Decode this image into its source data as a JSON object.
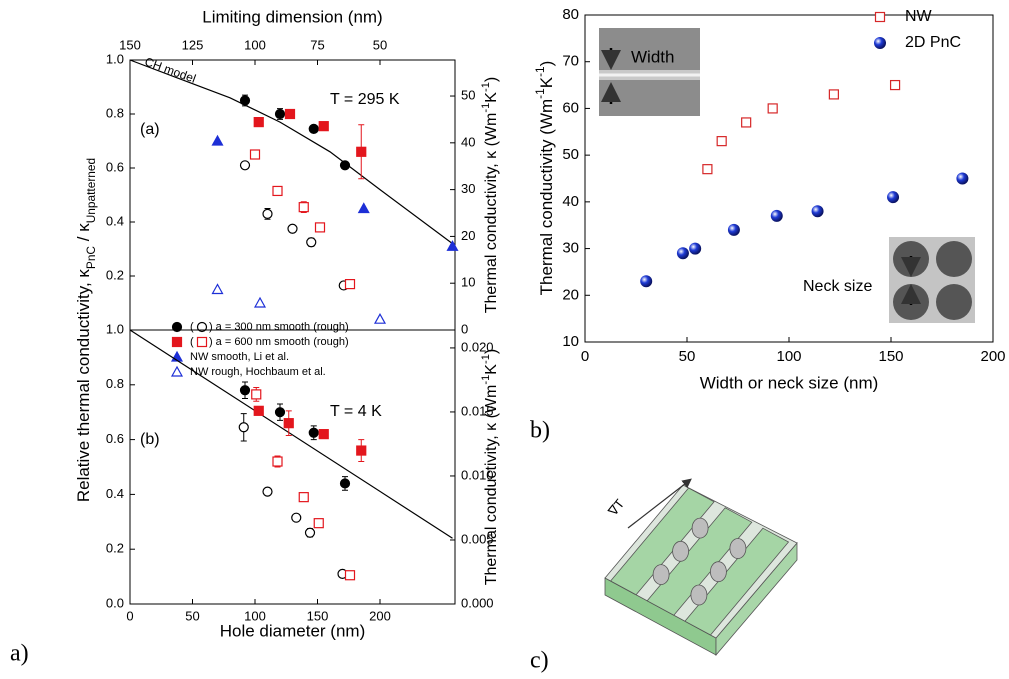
{
  "chart_data": [
    {
      "type": "scatter",
      "xlim": [
        0,
        260
      ],
      "ylim": [
        0,
        1
      ],
      "yticks": [
        0.2,
        0.4,
        0.6,
        0.8,
        {
          "value": 1,
          "label": "1.0"
        }
      ],
      "y2lim": [
        0,
        57.7
      ],
      "y2ticks": [
        0,
        10,
        20,
        30,
        40,
        50
      ],
      "x2label": "Limiting dimension (nm)",
      "x2lim": [
        150,
        20
      ],
      "x2ticks": [
        150,
        125,
        100,
        75,
        50
      ],
      "ylabel": [
        "Relative thermal conductivity, κ",
        "PnC",
        " / κ",
        "Unpatterned"
      ],
      "y2label": [
        "Thermal conductivity, κ (Wm",
        "-1",
        "K",
        "-1",
        ")"
      ],
      "panel_tag": "(a)",
      "condition": "T = 295 K",
      "legend": "lower left",
      "model": {
        "name": "CH model",
        "x": [
          0,
          40,
          80,
          120,
          160,
          200,
          258
        ],
        "values": [
          1.0,
          0.93,
          0.86,
          0.77,
          0.66,
          0.52,
          0.32
        ]
      },
      "series": [
        {
          "name": "(     ) a = 300 nm smooth (rough)",
          "color": "#000000",
          "marker": "circle",
          "filled": true,
          "x": [
            92,
            120,
            147,
            172
          ],
          "values": [
            0.85,
            0.8,
            0.745,
            0.61
          ],
          "errors": [
            0.02,
            0.02,
            0.01,
            0.01
          ]
        },
        {
          "color": "#000000",
          "marker": "circle",
          "filled": false,
          "x": [
            92,
            110,
            130,
            145,
            171
          ],
          "values": [
            0.61,
            0.43,
            0.375,
            0.325,
            0.165
          ],
          "errors": [
            0.01,
            0.02,
            0.01,
            0.015,
            0.01
          ]
        },
        {
          "name": "(     ) a = 600 nm smooth (rough)",
          "color": "#e3161d",
          "marker": "square",
          "filled": true,
          "x": [
            103,
            128,
            155,
            185
          ],
          "values": [
            0.77,
            0.8,
            0.755,
            0.66
          ],
          "errors": [
            0.01,
            0.01,
            0.015,
            0.1
          ]
        },
        {
          "color": "#e3161d",
          "marker": "square",
          "filled": false,
          "x": [
            100,
            118,
            139,
            152,
            176
          ],
          "values": [
            0.65,
            0.515,
            0.455,
            0.38,
            0.17
          ],
          "errors": [
            0.01,
            0.01,
            0.02,
            0.01,
            0.01
          ]
        },
        {
          "name": "NW smooth, Li et al.",
          "color": "#1d2fd6",
          "marker": "triangle",
          "filled": true,
          "x": [
            70,
            187,
            258
          ],
          "values": [
            0.7,
            0.45,
            0.31
          ]
        },
        {
          "name": "NW rough, Hochbaum et al.",
          "color": "#1d2fd6",
          "marker": "triangle",
          "filled": false,
          "x": [
            70,
            104,
            200
          ],
          "values": [
            0.15,
            0.1,
            0.04
          ]
        }
      ]
    },
    {
      "type": "scatter",
      "xlim": [
        0,
        260
      ],
      "xticks": [
        0,
        50,
        100,
        150,
        200
      ],
      "xlabel": "Hole diameter (nm)",
      "ylim": [
        0,
        1
      ],
      "yticks": [
        {
          "value": 0,
          "label": "0.0"
        },
        0.2,
        0.4,
        0.6,
        0.8,
        {
          "value": 1,
          "label": "1.0"
        }
      ],
      "y2lim": [
        0,
        0.0214
      ],
      "y2ticks": [
        {
          "value": 0,
          "label": "0.000"
        },
        0.005,
        {
          "value": 0.01,
          "label": "0.010"
        },
        0.015,
        {
          "value": 0.02,
          "label": "0.020"
        }
      ],
      "y2label": [
        "Thermal conductivity, κ (Wm",
        "-1",
        "K",
        "-1",
        ")"
      ],
      "panel_tag": "(b)",
      "condition": "T = 4 K",
      "model": {
        "x": [
          0,
          258
        ],
        "values": [
          1.0,
          0.24
        ]
      },
      "series": [
        {
          "color": "#000000",
          "marker": "circle",
          "filled": true,
          "x": [
            92,
            120,
            147,
            172
          ],
          "values": [
            0.78,
            0.7,
            0.625,
            0.44
          ],
          "errors": [
            0.03,
            0.03,
            0.025,
            0.025
          ]
        },
        {
          "color": "#000000",
          "marker": "circle",
          "filled": false,
          "x": [
            91,
            110,
            133,
            144,
            170
          ],
          "values": [
            0.645,
            0.41,
            0.315,
            0.26,
            0.11
          ],
          "errors": [
            0.05,
            0.01,
            0.01,
            0.015,
            0.01
          ]
        },
        {
          "color": "#e3161d",
          "marker": "square",
          "filled": true,
          "x": [
            103,
            127,
            155,
            185
          ],
          "values": [
            0.705,
            0.66,
            0.62,
            0.56
          ],
          "errors": [
            0.01,
            0.045,
            0.01,
            0.04
          ]
        },
        {
          "color": "#e3161d",
          "marker": "square",
          "filled": false,
          "x": [
            101,
            118,
            139,
            151,
            176
          ],
          "values": [
            0.765,
            0.52,
            0.39,
            0.295,
            0.105
          ],
          "errors": [
            0.025,
            0.02,
            0.01,
            0.01,
            0.015
          ]
        }
      ]
    },
    {
      "type": "scatter",
      "xlabel": "Width or neck size (nm)",
      "ylabel": [
        "Thermal conductivity (Wm",
        "-1",
        "K",
        "-1",
        ")"
      ],
      "xlim": [
        0,
        200
      ],
      "xticks": [
        0,
        50,
        100,
        150,
        200
      ],
      "ylim": [
        10,
        80
      ],
      "yticks": [
        10,
        20,
        30,
        40,
        50,
        60,
        70,
        80
      ],
      "legend": "upper right",
      "inset_labels": [
        "Width",
        "Neck size"
      ],
      "series": [
        {
          "name": "NW",
          "color": "#d62728",
          "marker": "square",
          "filled": false,
          "x": [
            60,
            67,
            79,
            92,
            122,
            152
          ],
          "values": [
            47,
            53,
            57,
            60,
            63,
            65
          ]
        },
        {
          "name": "2D PnC",
          "color": "#1f3bd6",
          "marker": "sphere",
          "filled": true,
          "x": [
            30,
            48,
            54,
            73,
            94,
            114,
            151,
            185
          ],
          "values": [
            23,
            29,
            30,
            34,
            37,
            38,
            41,
            45
          ]
        }
      ]
    }
  ],
  "panel_labels": [
    "a)",
    "b)",
    "c)"
  ],
  "schematic": {
    "gradient_label": "∇T"
  }
}
